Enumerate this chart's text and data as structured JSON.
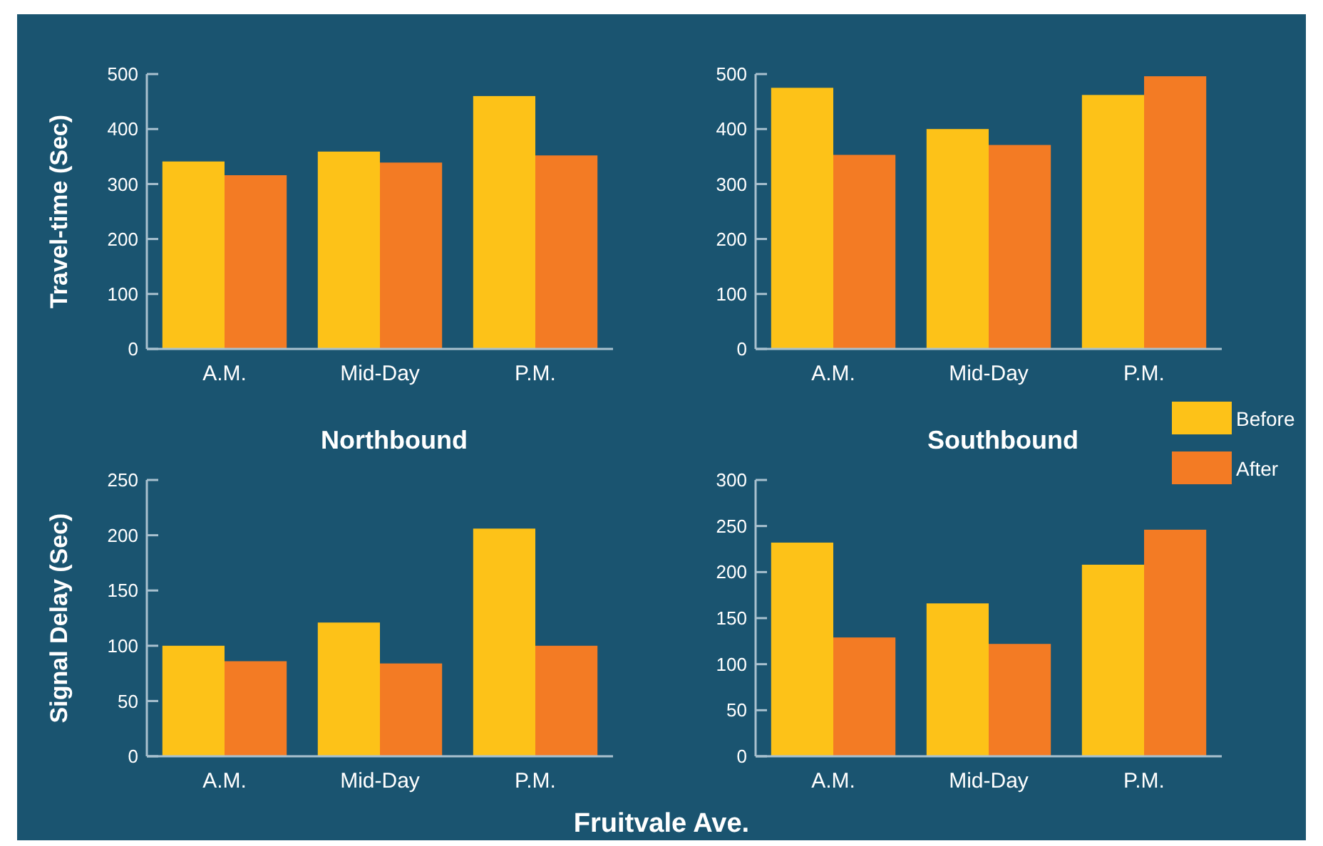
{
  "chart_data": [
    {
      "type": "bar",
      "ylabel": "Travel-time (Sec)",
      "xlabel": "Northbound",
      "categories": [
        "A.M.",
        "Mid-Day",
        "P.M."
      ],
      "ylim": [
        0,
        500
      ],
      "yticks": [
        0,
        100,
        200,
        300,
        400,
        500
      ],
      "series": [
        {
          "color": "#fdc218",
          "values": [
            341,
            359,
            460
          ]
        },
        {
          "color": "#f37b24",
          "values": [
            316,
            339,
            352
          ]
        }
      ]
    },
    {
      "type": "bar",
      "xlabel": "Southbound",
      "categories": [
        "A.M.",
        "Mid-Day",
        "P.M."
      ],
      "ylim": [
        0,
        500
      ],
      "yticks": [
        0,
        100,
        200,
        300,
        400,
        500
      ],
      "legend": "right",
      "series": [
        {
          "name": "Before",
          "color": "#fdc218",
          "values": [
            475,
            400,
            462
          ]
        },
        {
          "name": "After",
          "color": "#f37b24",
          "values": [
            353,
            371,
            496
          ]
        }
      ]
    },
    {
      "type": "bar",
      "ylabel": "Signal Delay (Sec)",
      "categories": [
        "A.M.",
        "Mid-Day",
        "P.M."
      ],
      "ylim": [
        0,
        250
      ],
      "yticks": [
        0,
        50,
        100,
        150,
        200,
        250
      ],
      "annotations": [
        "Fruitvale Ave."
      ],
      "series": [
        {
          "color": "#fdc218",
          "values": [
            100,
            121,
            206
          ]
        },
        {
          "color": "#f37b24",
          "values": [
            86,
            84,
            100
          ]
        }
      ]
    },
    {
      "type": "bar",
      "categories": [
        "A.M.",
        "Mid-Day",
        "P.M."
      ],
      "ylim": [
        0,
        300
      ],
      "yticks": [
        0,
        50,
        100,
        150,
        200,
        250,
        300
      ],
      "series": [
        {
          "color": "#fdc218",
          "values": [
            232,
            166,
            208
          ]
        },
        {
          "color": "#f37b24",
          "values": [
            129,
            122,
            246
          ]
        }
      ]
    }
  ]
}
